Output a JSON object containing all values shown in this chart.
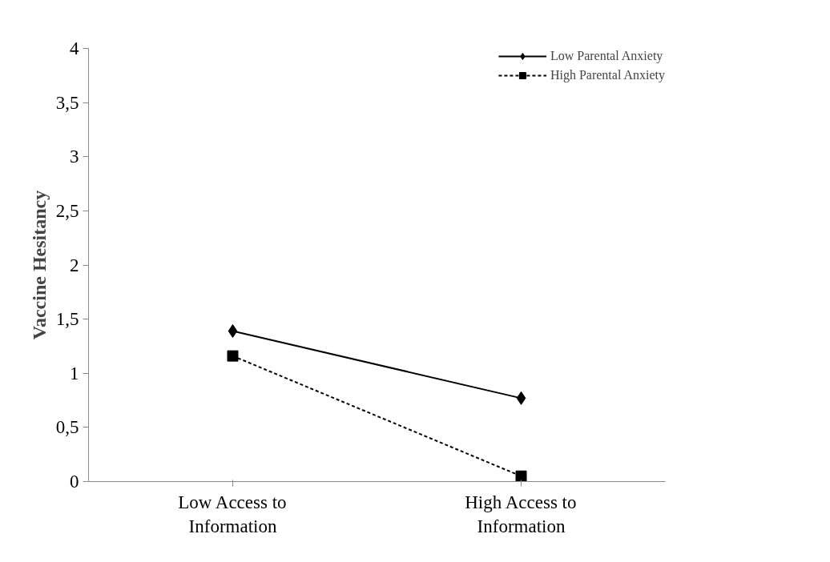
{
  "chart_data": {
    "type": "line",
    "ylabel": "Vaccine Hesitancy",
    "categories": [
      "Low Access to Information",
      "High Access to Information"
    ],
    "series": [
      {
        "name": "Low Parental Anxiety",
        "color": "#000000",
        "values": [
          1.39,
          0.77
        ],
        "marker": "diamond",
        "line_style": "solid"
      },
      {
        "name": "High Parental Anxiety",
        "color": "#000000",
        "values": [
          1.16,
          0.05
        ],
        "marker": "square",
        "line_style": "dashed"
      }
    ],
    "ylim": [
      0,
      4
    ],
    "yticks": [
      0,
      {
        "value": 0.5,
        "label": "0,5"
      },
      1,
      {
        "value": 1.5,
        "label": "1,5"
      },
      2,
      {
        "value": 2.5,
        "label": "2,5"
      },
      3,
      {
        "value": 3.5,
        "label": "3,5"
      },
      4
    ],
    "grid": false,
    "legend": "top right"
  }
}
